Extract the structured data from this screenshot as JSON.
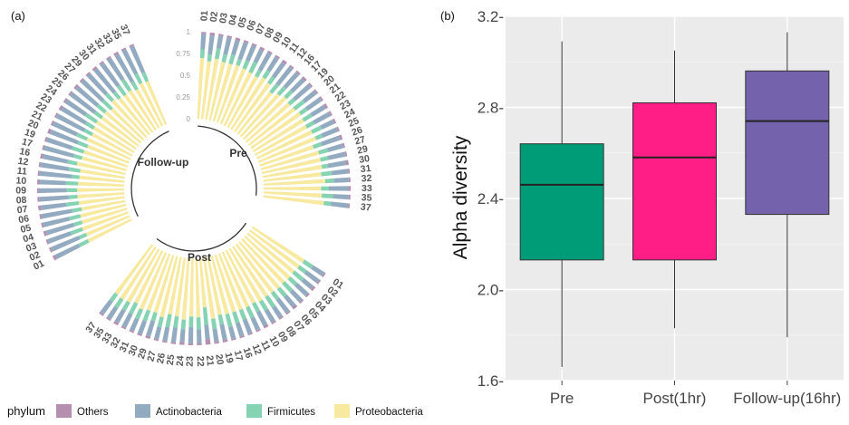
{
  "panel_a": {
    "tag": "(a)",
    "chart_data": {
      "type": "bar",
      "layout": "circular stacked bar",
      "title": "",
      "categories": [
        "01",
        "02",
        "03",
        "04",
        "05",
        "06",
        "07",
        "08",
        "09",
        "10",
        "11",
        "12",
        "16",
        "17",
        "19",
        "20",
        "21",
        "22",
        "23",
        "24",
        "25",
        "26",
        "27",
        "29",
        "30",
        "31",
        "32",
        "33",
        "35",
        "37"
      ],
      "groups": [
        {
          "name": "Pre",
          "series": [
            {
              "name": "Others",
              "values": [
                0.02,
                0.03,
                0.02,
                0.02,
                0.03,
                0.02,
                0.02,
                0.03,
                0.02,
                0.02,
                0.03,
                0.02,
                0.02,
                0.03,
                0.02,
                0.02,
                0.02,
                0.03,
                0.02,
                0.02,
                0.02,
                0.03,
                0.02,
                0.02,
                0.03,
                0.02,
                0.02,
                0.03,
                0.02,
                0.02
              ]
            },
            {
              "name": "Actinobacteria",
              "values": [
                0.18,
                0.22,
                0.15,
                0.2,
                0.17,
                0.21,
                0.19,
                0.16,
                0.23,
                0.18,
                0.2,
                0.25,
                0.22,
                0.19,
                0.24,
                0.17,
                0.2,
                0.18,
                0.21,
                0.16,
                0.19,
                0.22,
                0.18,
                0.2,
                0.21,
                0.19,
                0.17,
                0.22,
                0.18,
                0.2
              ]
            },
            {
              "name": "Firmicutes",
              "values": [
                0.1,
                0.08,
                0.12,
                0.09,
                0.11,
                0.07,
                0.1,
                0.13,
                0.08,
                0.1,
                0.09,
                0.12,
                0.11,
                0.1,
                0.08,
                0.14,
                0.09,
                0.11,
                0.1,
                0.12,
                0.08,
                0.1,
                0.11,
                0.09,
                0.07,
                0.12,
                0.1,
                0.09,
                0.13,
                0.08
              ]
            },
            {
              "name": "Proteobacteria",
              "values": [
                0.7,
                0.67,
                0.71,
                0.69,
                0.69,
                0.7,
                0.69,
                0.68,
                0.67,
                0.7,
                0.68,
                0.61,
                0.65,
                0.68,
                0.66,
                0.67,
                0.69,
                0.68,
                0.67,
                0.7,
                0.71,
                0.65,
                0.69,
                0.69,
                0.69,
                0.67,
                0.71,
                0.66,
                0.67,
                0.7
              ]
            }
          ]
        },
        {
          "name": "Post",
          "series": [
            {
              "name": "Others",
              "values": [
                0.02,
                0.02,
                0.03,
                0.02,
                0.02,
                0.03,
                0.02,
                0.02,
                0.02,
                0.03,
                0.02,
                0.02,
                0.02,
                0.02,
                0.03,
                0.02,
                0.06,
                0.02,
                0.02,
                0.03,
                0.02,
                0.02,
                0.02,
                0.03,
                0.02,
                0.02,
                0.02,
                0.03,
                0.02,
                0.02
              ]
            },
            {
              "name": "Actinobacteria",
              "values": [
                0.15,
                0.18,
                0.14,
                0.17,
                0.16,
                0.15,
                0.19,
                0.14,
                0.16,
                0.18,
                0.15,
                0.17,
                0.16,
                0.14,
                0.18,
                0.15,
                0.17,
                0.16,
                0.19,
                0.15,
                0.17,
                0.16,
                0.14,
                0.18,
                0.16,
                0.15,
                0.17,
                0.16,
                0.15,
                0.18
              ]
            },
            {
              "name": "Firmicutes",
              "values": [
                0.12,
                0.1,
                0.14,
                0.11,
                0.13,
                0.12,
                0.1,
                0.15,
                0.12,
                0.11,
                0.14,
                0.12,
                0.13,
                0.15,
                0.11,
                0.12,
                0.2,
                0.14,
                0.12,
                0.11,
                0.13,
                0.15,
                0.12,
                0.1,
                0.13,
                0.12,
                0.14,
                0.11,
                0.12,
                0.1
              ]
            },
            {
              "name": "Proteobacteria",
              "values": [
                0.71,
                0.7,
                0.69,
                0.7,
                0.69,
                0.7,
                0.69,
                0.69,
                0.7,
                0.68,
                0.69,
                0.69,
                0.69,
                0.69,
                0.68,
                0.71,
                0.57,
                0.68,
                0.67,
                0.71,
                0.68,
                0.67,
                0.72,
                0.69,
                0.69,
                0.71,
                0.67,
                0.7,
                0.71,
                0.7
              ]
            }
          ]
        },
        {
          "name": "Follow-up",
          "series": [
            {
              "name": "Others",
              "values": [
                0.03,
                0.02,
                0.02,
                0.03,
                0.02,
                0.02,
                0.03,
                0.02,
                0.02,
                0.03,
                0.02,
                0.02,
                0.03,
                0.02,
                0.02,
                0.03,
                0.02,
                0.02,
                0.03,
                0.02,
                0.02,
                0.03,
                0.02,
                0.02,
                0.03,
                0.02,
                0.02,
                0.03,
                0.02,
                0.02
              ]
            },
            {
              "name": "Actinobacteria",
              "values": [
                0.3,
                0.35,
                0.28,
                0.33,
                0.31,
                0.36,
                0.29,
                0.34,
                0.32,
                0.3,
                0.37,
                0.33,
                0.29,
                0.35,
                0.31,
                0.34,
                0.3,
                0.36,
                0.32,
                0.28,
                0.35,
                0.31,
                0.33,
                0.3,
                0.34,
                0.32,
                0.29,
                0.36,
                0.31,
                0.33
              ]
            },
            {
              "name": "Firmicutes",
              "values": [
                0.12,
                0.09,
                0.14,
                0.1,
                0.13,
                0.11,
                0.15,
                0.1,
                0.12,
                0.14,
                0.09,
                0.13,
                0.11,
                0.1,
                0.14,
                0.12,
                0.13,
                0.1,
                0.11,
                0.15,
                0.1,
                0.12,
                0.14,
                0.11,
                0.09,
                0.13,
                0.15,
                0.1,
                0.12,
                0.11
              ]
            },
            {
              "name": "Proteobacteria",
              "values": [
                0.55,
                0.54,
                0.56,
                0.54,
                0.54,
                0.51,
                0.53,
                0.54,
                0.54,
                0.53,
                0.52,
                0.52,
                0.57,
                0.53,
                0.53,
                0.51,
                0.55,
                0.52,
                0.54,
                0.55,
                0.53,
                0.54,
                0.51,
                0.57,
                0.54,
                0.53,
                0.54,
                0.51,
                0.55,
                0.54
              ]
            }
          ]
        }
      ],
      "radial_ticks": [
        "0",
        "0.25",
        "0.5",
        "0.75",
        "1"
      ],
      "legend": {
        "title": "phylum",
        "position": "bottom",
        "entries": [
          "Others",
          "Actinobacteria",
          "Firmicutes",
          "Proteobacteria"
        ]
      },
      "colors": {
        "Others": "#b58fb0",
        "Actinobacteria": "#93abc0",
        "Firmicutes": "#86d3b4",
        "Proteobacteria": "#f8e9a0"
      }
    }
  },
  "panel_b": {
    "tag": "(b)",
    "chart_data": {
      "type": "boxplot",
      "title": "",
      "xlabel": "",
      "ylabel": "Alpha diversity",
      "categories": [
        "Pre",
        "Post(1hr)",
        "Follow-up(16hr)"
      ],
      "boxes": [
        {
          "min": 1.66,
          "q1": 2.13,
          "median": 2.46,
          "q3": 2.64,
          "max": 3.09
        },
        {
          "min": 1.83,
          "q1": 2.13,
          "median": 2.58,
          "q3": 2.82,
          "max": 3.05
        },
        {
          "min": 1.79,
          "q1": 2.33,
          "median": 2.74,
          "q3": 2.96,
          "max": 3.13
        }
      ],
      "ylim": [
        1.6,
        3.2
      ],
      "yticks": [
        1.6,
        2.0,
        2.4,
        2.8,
        3.2
      ],
      "ytick_labels": [
        "1.6-",
        "2.0-",
        "2.4-",
        "2.8-",
        "3.2-"
      ],
      "grid": true,
      "colors": [
        "#009b77",
        "#ff1e85",
        "#7463ac"
      ],
      "background": "#ebebeb"
    }
  }
}
